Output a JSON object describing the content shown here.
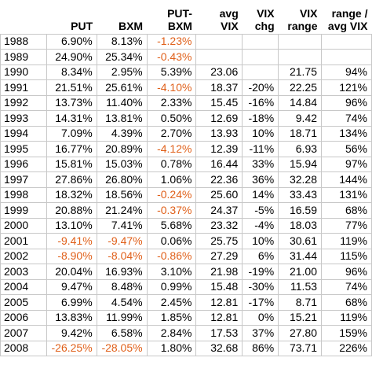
{
  "table": {
    "headers": [
      "",
      "PUT",
      "BXM",
      "PUT-\nBXM",
      "avg\nVIX",
      "VIX\nchg",
      "VIX\nrange",
      "range /\navg VIX"
    ],
    "rows": [
      [
        "1988",
        "6.90%",
        "8.13%",
        "-1.23%",
        "",
        "",
        "",
        ""
      ],
      [
        "1989",
        "24.90%",
        "25.34%",
        "-0.43%",
        "",
        "",
        "",
        ""
      ],
      [
        "1990",
        "8.34%",
        "2.95%",
        "5.39%",
        "23.06",
        "",
        "21.75",
        "94%"
      ],
      [
        "1991",
        "21.51%",
        "25.61%",
        "-4.10%",
        "18.37",
        "-20%",
        "22.25",
        "121%"
      ],
      [
        "1992",
        "13.73%",
        "11.40%",
        "2.33%",
        "15.45",
        "-16%",
        "14.84",
        "96%"
      ],
      [
        "1993",
        "14.31%",
        "13.81%",
        "0.50%",
        "12.69",
        "-18%",
        "9.42",
        "74%"
      ],
      [
        "1994",
        "7.09%",
        "4.39%",
        "2.70%",
        "13.93",
        "10%",
        "18.71",
        "134%"
      ],
      [
        "1995",
        "16.77%",
        "20.89%",
        "-4.12%",
        "12.39",
        "-11%",
        "6.93",
        "56%"
      ],
      [
        "1996",
        "15.81%",
        "15.03%",
        "0.78%",
        "16.44",
        "33%",
        "15.94",
        "97%"
      ],
      [
        "1997",
        "27.86%",
        "26.80%",
        "1.06%",
        "22.36",
        "36%",
        "32.28",
        "144%"
      ],
      [
        "1998",
        "18.32%",
        "18.56%",
        "-0.24%",
        "25.60",
        "14%",
        "33.43",
        "131%"
      ],
      [
        "1999",
        "20.88%",
        "21.24%",
        "-0.37%",
        "24.37",
        "-5%",
        "16.59",
        "68%"
      ],
      [
        "2000",
        "13.10%",
        "7.41%",
        "5.68%",
        "23.32",
        "-4%",
        "18.03",
        "77%"
      ],
      [
        "2001",
        "-9.41%",
        "-9.47%",
        "0.06%",
        "25.75",
        "10%",
        "30.61",
        "119%"
      ],
      [
        "2002",
        "-8.90%",
        "-8.04%",
        "-0.86%",
        "27.29",
        "6%",
        "31.44",
        "115%"
      ],
      [
        "2003",
        "20.04%",
        "16.93%",
        "3.10%",
        "21.98",
        "-19%",
        "21.00",
        "96%"
      ],
      [
        "2004",
        "9.47%",
        "8.48%",
        "0.99%",
        "15.48",
        "-30%",
        "11.53",
        "74%"
      ],
      [
        "2005",
        "6.99%",
        "4.54%",
        "2.45%",
        "12.81",
        "-17%",
        "8.71",
        "68%"
      ],
      [
        "2006",
        "13.83%",
        "11.99%",
        "1.85%",
        "12.81",
        "0%",
        "15.21",
        "119%"
      ],
      [
        "2007",
        "9.42%",
        "6.58%",
        "2.84%",
        "17.53",
        "37%",
        "27.80",
        "159%"
      ],
      [
        "2008",
        "-26.25%",
        "-28.05%",
        "1.80%",
        "32.68",
        "86%",
        "73.71",
        "226%"
      ]
    ],
    "colors": {
      "negative": "#e0601a",
      "text": "#000000",
      "grid": "#c8c8c8"
    }
  }
}
